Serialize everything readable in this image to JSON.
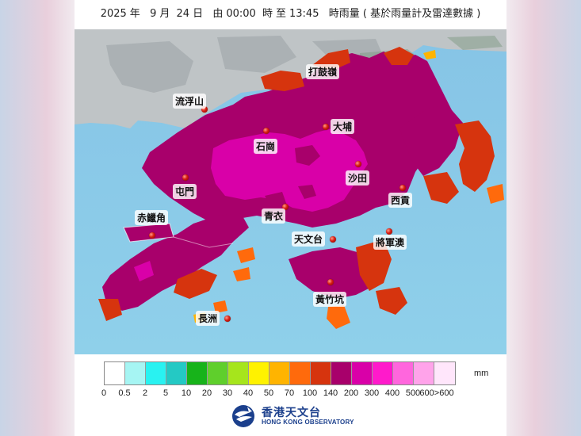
{
  "header": {
    "year": "2025",
    "year_unit": "年",
    "month": "9",
    "month_unit": "月",
    "day": "24",
    "day_unit": "日",
    "from_label": "由",
    "start_time": "00:00",
    "hour_unit": "時",
    "to_label": "至",
    "end_time": "13:45",
    "suffix": "時雨量 ( 基於雨量計及雷達數據 )"
  },
  "map": {
    "places": [
      {
        "id": "lau-fau-shan",
        "name": "流浮山"
      },
      {
        "id": "ta-kwu-ling",
        "name": "打鼓嶺"
      },
      {
        "id": "tai-po",
        "name": "大埔"
      },
      {
        "id": "shek-kong",
        "name": "石崗"
      },
      {
        "id": "sha-tin",
        "name": "沙田"
      },
      {
        "id": "tuen-mun",
        "name": "屯門"
      },
      {
        "id": "sai-kung",
        "name": "西貢"
      },
      {
        "id": "chek-lap-kok",
        "name": "赤鱲角"
      },
      {
        "id": "tsing-yi",
        "name": "青衣"
      },
      {
        "id": "tsim-sha-tsui",
        "name": "天文台"
      },
      {
        "id": "tseung-kwan-o",
        "name": "將軍澳"
      },
      {
        "id": "wong-chuk-hang",
        "name": "黃竹坑"
      },
      {
        "id": "cheung-chau",
        "name": "長洲"
      }
    ]
  },
  "legend": {
    "unit": "mm",
    "ticks": [
      "0",
      "0.5",
      "2",
      "5",
      "10",
      "20",
      "30",
      "40",
      "50",
      "70",
      "100",
      "140",
      "200",
      "300",
      "400",
      "500",
      "600>600"
    ],
    "colors": [
      "#ffffff",
      "#a6f5f3",
      "#29f2f1",
      "#24c9c4",
      "#17b31a",
      "#5fcf2c",
      "#a6e51c",
      "#fff200",
      "#ffb400",
      "#ff6a0c",
      "#d6340e",
      "#a8006b",
      "#d900a8",
      "#ff1acb",
      "#ff66dd",
      "#ffa3ea",
      "#ffe6fb"
    ]
  },
  "logo": {
    "name_cn": "香港天文台",
    "name_en": "HONG KONG OBSERVATORY"
  }
}
